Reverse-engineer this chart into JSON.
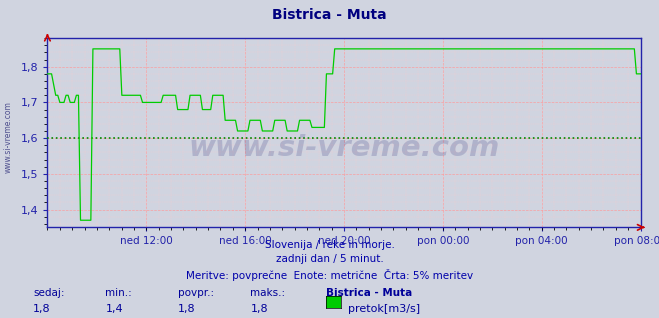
{
  "title": "Bistrica - Muta",
  "title_color": "#000080",
  "bg_color": "#d0d4e0",
  "plot_bg_color": "#d0d4e0",
  "line_color": "#00cc00",
  "dotted_line_color": "#008800",
  "dotted_line_y": 1.6,
  "axis_color": "#2222aa",
  "grid_color_major": "#ff9999",
  "grid_color_minor": "#ffcccc",
  "ylim": [
    1.35,
    1.88
  ],
  "yticks": [
    1.4,
    1.5,
    1.6,
    1.7,
    1.8
  ],
  "xtick_labels": [
    "ned 12:00",
    "ned 16:00",
    "ned 20:00",
    "pon 00:00",
    "pon 04:00",
    "pon 08:00"
  ],
  "xtick_positions": [
    0.1667,
    0.3333,
    0.5,
    0.6667,
    0.8333,
    1.0
  ],
  "watermark": "www.si-vreme.com",
  "watermark_color": "#1a1a6e",
  "watermark_alpha": 0.18,
  "subtitle1": "Slovenija / reke in morje.",
  "subtitle2": "zadnji dan / 5 minut.",
  "subtitle3": "Meritve: povprečne  Enote: metrične  Črta: 5% meritev",
  "subtitle_color": "#0000aa",
  "left_label": "www.si-vreme.com",
  "left_label_color": "#1a1a6e",
  "sedaj_label": "sedaj:",
  "min_label": "min.:",
  "povpr_label": "povpr.:",
  "maks_label": "maks.:",
  "station_label": "Bistrica - Muta",
  "legend_label": "pretok[m3/s]",
  "legend_color": "#00cc00",
  "sedaj_val": "1,8",
  "min_val": "1,4",
  "povpr_val": "1,8",
  "maks_val": "1,8",
  "footer_color": "#000099"
}
